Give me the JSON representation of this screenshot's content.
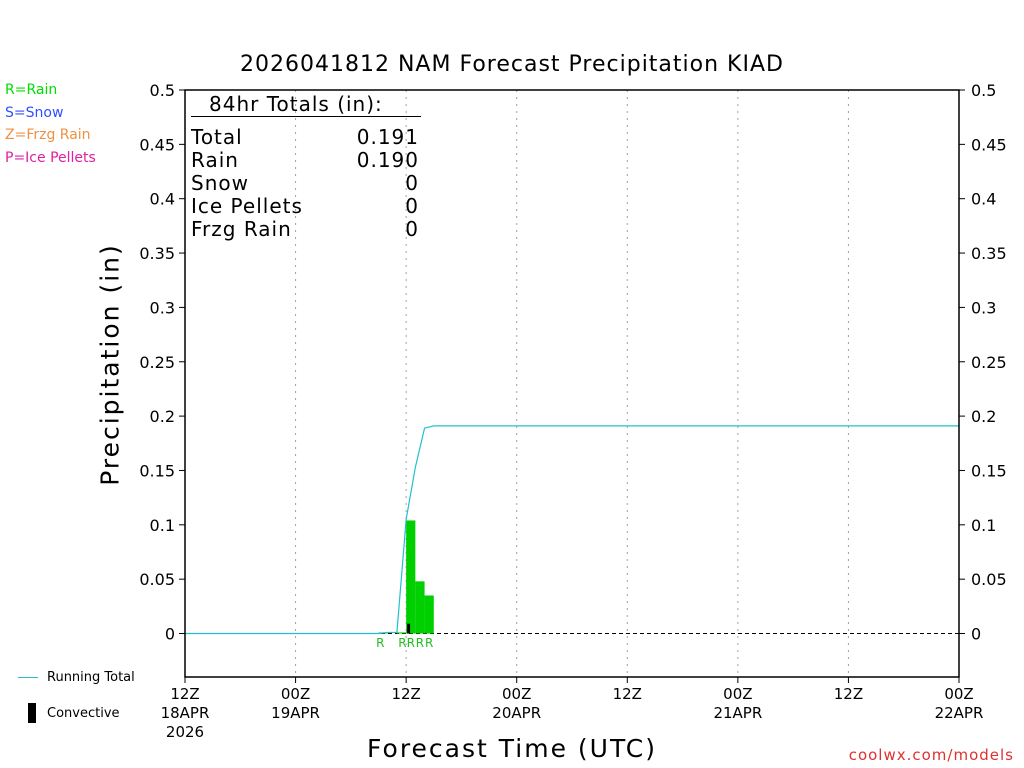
{
  "title": "2026041812 NAM Forecast Precipitation KIAD",
  "legend": [
    {
      "text": "R=Rain",
      "color": "#00e000"
    },
    {
      "text": "S=Snow",
      "color": "#3050ff"
    },
    {
      "text": "Z=Frzg Rain",
      "color": "#f09040"
    },
    {
      "text": "P=Ice Pellets",
      "color": "#e020a0"
    }
  ],
  "totals": {
    "heading": "84hr Totals (in):",
    "rows": [
      {
        "label": "Total",
        "value": "0.191"
      },
      {
        "label": "Rain",
        "value": "0.190"
      },
      {
        "label": "Snow",
        "value": "0"
      },
      {
        "label": "Ice Pellets",
        "value": "0"
      },
      {
        "label": "Frzg Rain",
        "value": "0"
      }
    ]
  },
  "xlabel": "Forecast Time (UTC)",
  "ylabel": "Precipitation (in)",
  "credit": "coolwx.com/models",
  "bottom_legend": {
    "running_total": "Running Total",
    "convective": "Convective"
  },
  "colors": {
    "rain": "#00d000",
    "running_total": "#20c0d0",
    "convective": "#000000",
    "grid": "#a0a0a0"
  },
  "chart_data": {
    "type": "bar",
    "xlim": [
      0,
      84
    ],
    "ylim": [
      -0.04,
      0.5
    ],
    "y_ticks": [
      0,
      0.05,
      0.1,
      0.15,
      0.2,
      0.25,
      0.3,
      0.35,
      0.4,
      0.45,
      0.5
    ],
    "y_tick_labels": [
      "0",
      "0.05",
      "0.1",
      "0.15",
      "0.2",
      "0.25",
      "0.3",
      "0.35",
      "0.4",
      "0.45",
      "0.5"
    ],
    "x_ticks": [
      {
        "hour": 0,
        "lines": [
          "12Z",
          "18APR",
          "2026"
        ]
      },
      {
        "hour": 12,
        "lines": [
          "00Z",
          "19APR"
        ]
      },
      {
        "hour": 24,
        "lines": [
          "12Z"
        ]
      },
      {
        "hour": 36,
        "lines": [
          "00Z",
          "20APR"
        ]
      },
      {
        "hour": 48,
        "lines": [
          "12Z"
        ]
      },
      {
        "hour": 60,
        "lines": [
          "00Z",
          "21APR"
        ]
      },
      {
        "hour": 72,
        "lines": [
          "12Z"
        ]
      },
      {
        "hour": 84,
        "lines": [
          "00Z",
          "22APR"
        ]
      }
    ],
    "grid_hours": [
      12,
      24,
      36,
      48,
      60,
      72
    ],
    "precip_bars": [
      {
        "start": 21,
        "end": 22,
        "value": 0.001,
        "type": "R"
      },
      {
        "start": 23,
        "end": 24,
        "value": 0.001,
        "type": "R"
      },
      {
        "start": 24,
        "end": 25,
        "value": 0.104,
        "type": "R"
      },
      {
        "start": 25,
        "end": 26,
        "value": 0.048,
        "type": "R"
      },
      {
        "start": 26,
        "end": 27,
        "value": 0.035,
        "type": "R"
      }
    ],
    "type_labels": [
      {
        "hour": 21.2,
        "text": "R"
      },
      {
        "hour": 23.6,
        "text": "R"
      },
      {
        "hour": 24.5,
        "text": "R"
      },
      {
        "hour": 25.5,
        "text": "R"
      },
      {
        "hour": 26.5,
        "text": "R"
      }
    ],
    "convective_bars": [
      {
        "start": 24.1,
        "end": 24.4,
        "value": 0.009
      }
    ],
    "running_total": {
      "name": "Running Total",
      "x": [
        0,
        21,
        22,
        23,
        24,
        25,
        26,
        27,
        84
      ],
      "y": [
        0,
        0,
        0.001,
        0.001,
        0.105,
        0.153,
        0.189,
        0.191,
        0.191
      ]
    }
  }
}
